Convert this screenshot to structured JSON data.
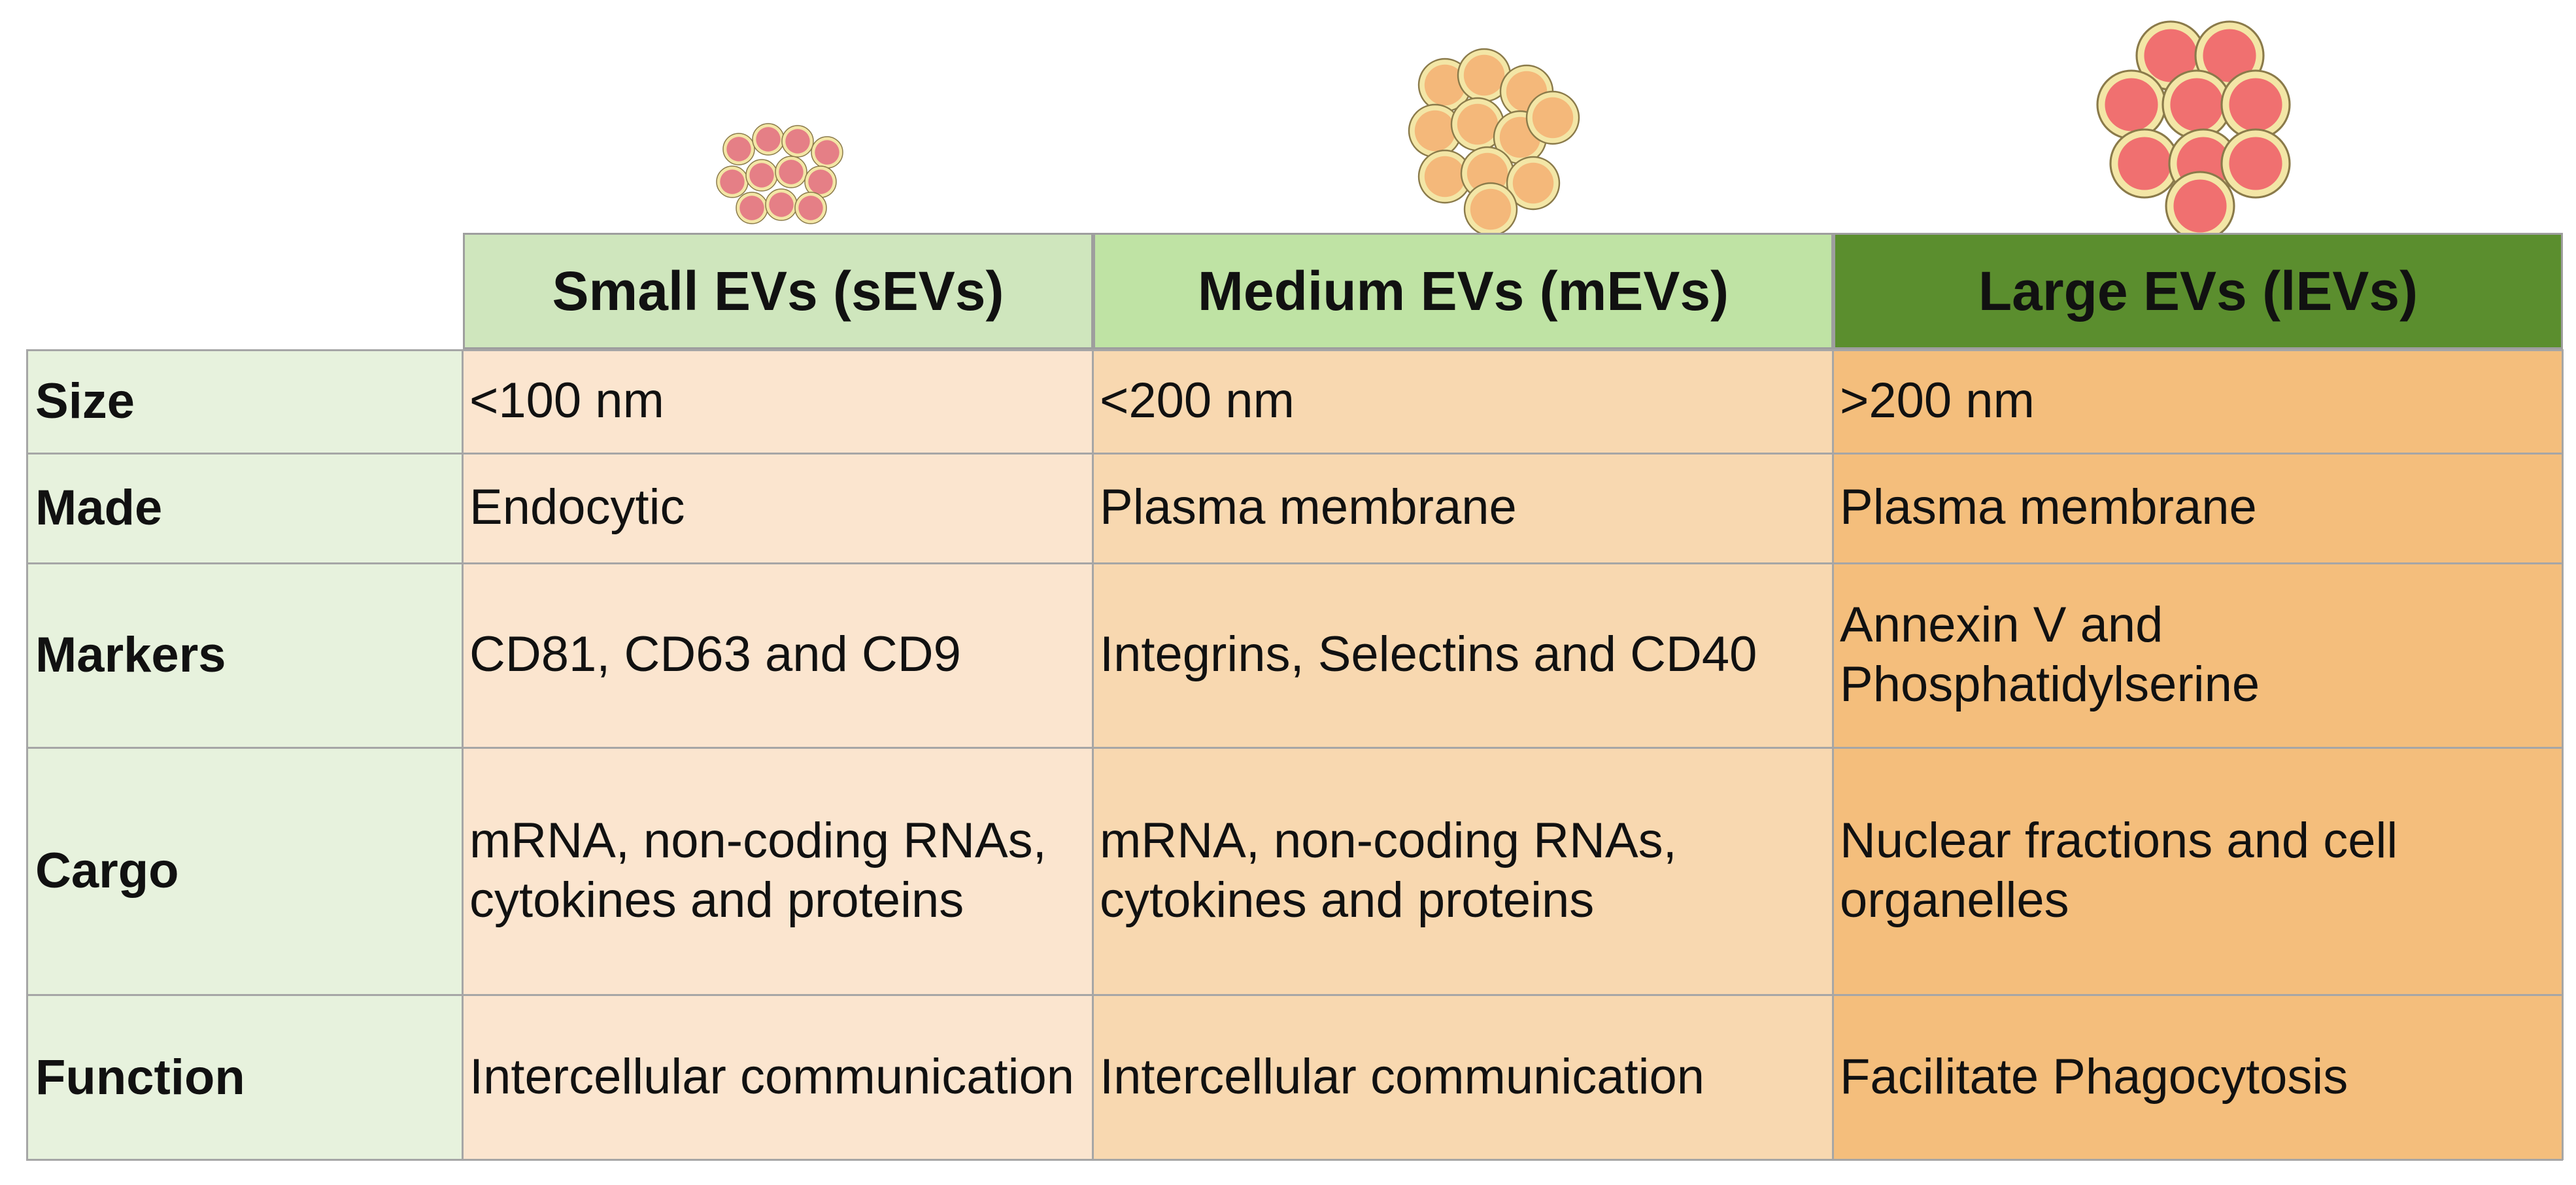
{
  "columns": [
    {
      "header": "Small EVs (sEVs)",
      "icon": "small-vesicle-cluster-icon",
      "color": "#cfe6bd"
    },
    {
      "header": "Medium EVs (mEVs)",
      "icon": "medium-vesicle-cluster-icon",
      "color": "#bfe3a4"
    },
    {
      "header": "Large EVs (lEVs)",
      "icon": "large-vesicle-cluster-icon",
      "color": "#5b8e2e"
    }
  ],
  "rows": [
    {
      "label": "Size",
      "cells": [
        "<100 nm",
        "<200 nm",
        ">200 nm"
      ]
    },
    {
      "label": "Made",
      "cells": [
        "Endocytic",
        "Plasma membrane",
        "Plasma membrane"
      ]
    },
    {
      "label": "Markers",
      "cells": [
        "CD81, CD63 and CD9",
        "Integrins, Selectins and CD40",
        "Annexin V and Phosphatidylserine"
      ]
    },
    {
      "label": "Cargo",
      "cells": [
        "mRNA, non-coding RNAs, cytokines and proteins",
        "mRNA, non-coding RNAs, cytokines and proteins",
        "Nuclear fractions and cell organelles"
      ]
    },
    {
      "label": "Function",
      "cells": [
        "Intercellular communication",
        "Intercellular communication",
        "Facilitate Phagocytosis"
      ]
    }
  ],
  "colors": {
    "label_bg": "#e7f2dd",
    "col1_bg": "#fbe5cf",
    "col2_bg": "#f8d8b0",
    "col3_bg": "#f4be7c",
    "small_vesicle": "#e57f86",
    "medium_vesicle": "#f4b87a",
    "large_vesicle": "#f07070",
    "vesicle_rim": "#f3e6a6"
  }
}
